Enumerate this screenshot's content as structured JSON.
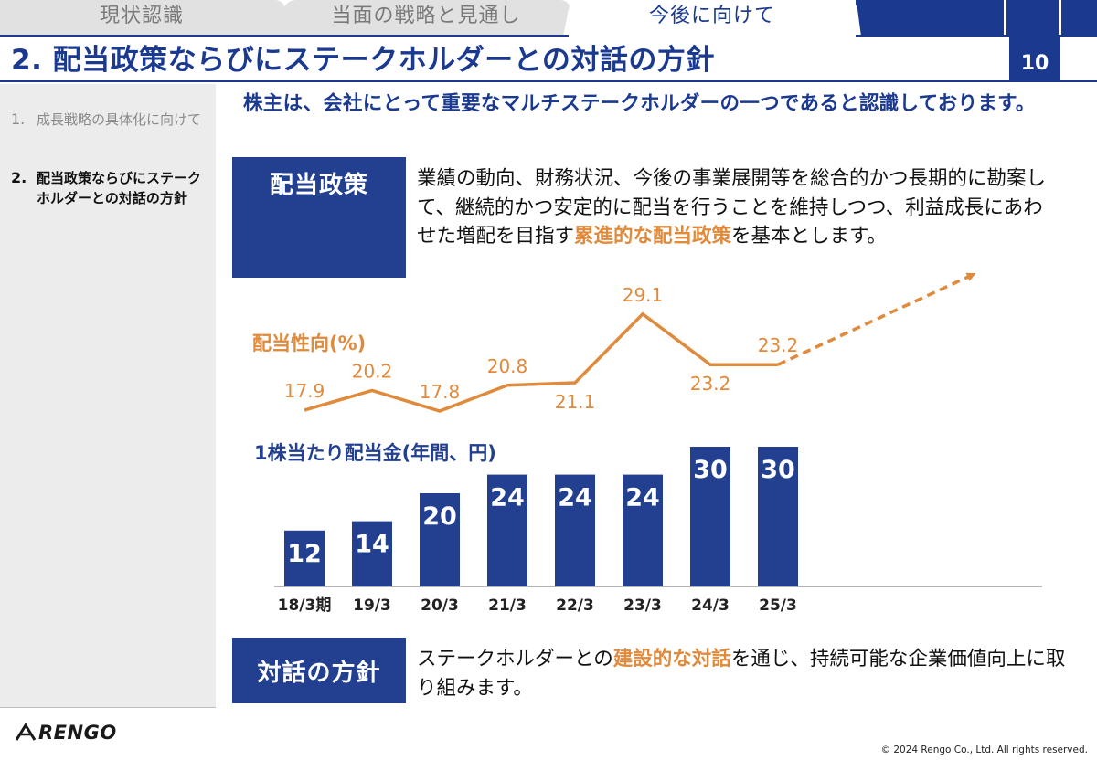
{
  "tabs": [
    {
      "label": "現状認識",
      "active": false
    },
    {
      "label": "当面の戦略と見通し",
      "active": false
    },
    {
      "label": "今後に向けて",
      "active": true
    }
  ],
  "title": "2. 配当政策ならびにステークホルダーとの対話の方針",
  "page_number": "10",
  "sidebar": {
    "items": [
      {
        "num": "1.",
        "label": "成長戦略の具体化に向けて",
        "active": false
      },
      {
        "num": "2.",
        "label": "配当政策ならびにステークホルダーとの対話の方針",
        "active": true
      }
    ]
  },
  "lead": "株主は、会社にとって重要なマルチステークホルダーの一つであると認識しております。",
  "policy": {
    "label": "配当政策",
    "text_before": "業績の動向、財務状況、今後の事業展開等を総合的かつ長期的に勘案して、継続的かつ安定的に配当を行うことを維持しつつ、利益成長にあわせた増配を目指す",
    "highlight": "累進的な配当政策",
    "text_after": "を基本とします。"
  },
  "dialog": {
    "label": "対話の方針",
    "text_before": "ステークホルダーとの",
    "highlight": "建設的な対話",
    "text_after": "を通じ、持続可能な企業価値向上に取り組みます。"
  },
  "chart_data": [
    {
      "type": "line",
      "title": "配当性向(%)",
      "categories": [
        "18/3期",
        "19/3",
        "20/3",
        "21/3",
        "22/3",
        "23/3",
        "24/3",
        "25/3"
      ],
      "values": [
        17.9,
        20.2,
        17.8,
        20.8,
        21.1,
        29.1,
        23.2,
        23.2
      ],
      "labels": [
        "17.9",
        "20.2",
        "17.8",
        "20.8",
        "21.1",
        "29.1",
        "23.2",
        "23.2"
      ],
      "trend": "dashed arrow up after 25/3",
      "color": "#e08a3c"
    },
    {
      "type": "bar",
      "title": "1株当たり配当金(年間、円)",
      "categories": [
        "18/3期",
        "19/3",
        "20/3",
        "21/3",
        "22/3",
        "23/3",
        "24/3",
        "25/3"
      ],
      "values": [
        12,
        14,
        20,
        24,
        24,
        24,
        30,
        30
      ],
      "color": "#22408f"
    }
  ],
  "footer": {
    "logo": "RENGO",
    "copyright": "© 2024 Rengo Co., Ltd. All rights reserved."
  },
  "colors": {
    "brand": "#1b3a8f",
    "accent": "#e08a3c",
    "sidebar_bg": "#ececec"
  }
}
